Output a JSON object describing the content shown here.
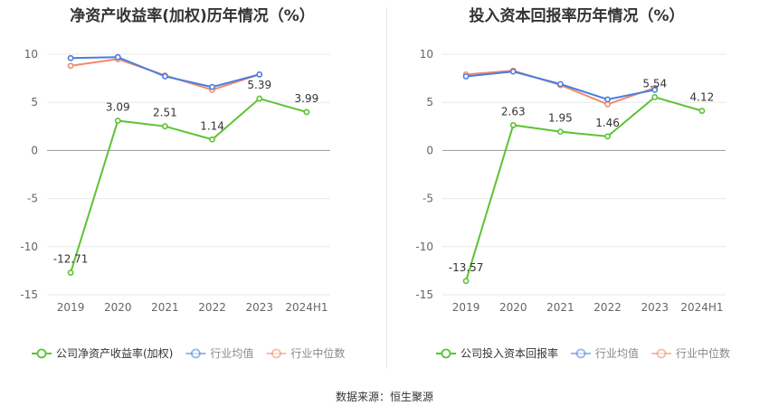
{
  "source": "数据来源：恒生聚源",
  "chart_data": [
    {
      "type": "line",
      "title": "净资产收益率(加权)历年情况（%）",
      "categories": [
        "2019",
        "2020",
        "2021",
        "2022",
        "2023",
        "2024H1"
      ],
      "ylim": [
        -15,
        10
      ],
      "yticks": [
        10,
        5,
        0,
        -5,
        -10,
        -15
      ],
      "grid": true,
      "legend_position": "bottom",
      "series": [
        {
          "name": "公司净资产收益率(加权)",
          "color": "#5cc334",
          "values": [
            -12.71,
            3.09,
            2.51,
            1.14,
            5.39,
            3.99
          ],
          "labels": [
            "-12.71",
            "3.09",
            "2.51",
            "1.14",
            "5.39",
            "3.99"
          ]
        },
        {
          "name": "行业均值",
          "color": "#4a7de0",
          "values": [
            9.6,
            9.7,
            7.7,
            6.6,
            7.9,
            null
          ]
        },
        {
          "name": "行业中位数",
          "color": "#f08a6c",
          "values": [
            8.8,
            9.5,
            7.8,
            6.3,
            7.9,
            null
          ]
        }
      ]
    },
    {
      "type": "line",
      "title": "投入资本回报率历年情况（%）",
      "categories": [
        "2019",
        "2020",
        "2021",
        "2022",
        "2023",
        "2024H1"
      ],
      "ylim": [
        -15,
        10
      ],
      "yticks": [
        10,
        5,
        0,
        -5,
        -10,
        -15
      ],
      "grid": true,
      "legend_position": "bottom",
      "series": [
        {
          "name": "公司投入资本回报率",
          "color": "#5cc334",
          "values": [
            -13.57,
            2.63,
            1.95,
            1.46,
            5.54,
            4.12
          ],
          "labels": [
            "-13.57",
            "2.63",
            "1.95",
            "1.46",
            "5.54",
            "4.12"
          ]
        },
        {
          "name": "行业均值",
          "color": "#4a7de0",
          "values": [
            7.7,
            8.2,
            6.9,
            5.3,
            6.3,
            null
          ]
        },
        {
          "name": "行业中位数",
          "color": "#f08a6c",
          "values": [
            7.9,
            8.3,
            6.8,
            4.8,
            6.5,
            null
          ]
        }
      ]
    }
  ]
}
